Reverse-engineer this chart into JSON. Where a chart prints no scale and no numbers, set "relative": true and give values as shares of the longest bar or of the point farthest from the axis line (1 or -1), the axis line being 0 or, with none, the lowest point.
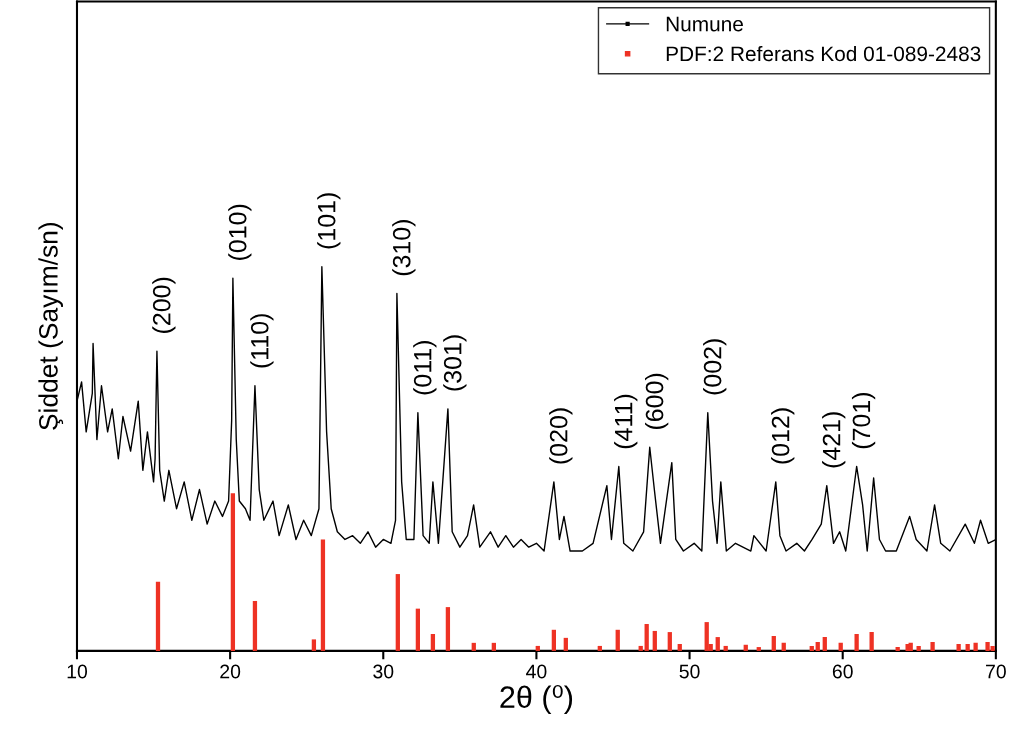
{
  "chart_data": {
    "type": "line",
    "relative": true,
    "xlabel": "2θ (⁰)",
    "ylabel": "Şiddet (Sayım/sn)",
    "xlim": [
      10,
      70
    ],
    "xticks": [
      10,
      20,
      30,
      40,
      50,
      60,
      70
    ],
    "legend": "top right",
    "grid": false,
    "series": [
      {
        "name": "Numune",
        "color": "#000000",
        "x": [
          10.0,
          10.3,
          10.6,
          11.0,
          11.05,
          11.3,
          11.6,
          12.0,
          12.3,
          12.7,
          13.0,
          13.5,
          14.0,
          14.3,
          14.6,
          15.0,
          15.1,
          15.22,
          15.4,
          15.7,
          16.0,
          16.5,
          17.0,
          17.5,
          18.0,
          18.5,
          19.0,
          19.5,
          19.9,
          20.1,
          20.18,
          20.4,
          20.6,
          21.0,
          21.3,
          21.62,
          21.9,
          22.2,
          22.8,
          23.2,
          23.8,
          24.3,
          24.8,
          25.3,
          25.8,
          25.99,
          26.3,
          26.6,
          27.0,
          27.5,
          28.0,
          28.5,
          29.0,
          29.5,
          30.0,
          30.5,
          30.8,
          30.89,
          31.2,
          31.5,
          32.0,
          32.26,
          32.6,
          33.0,
          33.24,
          33.6,
          34.22,
          34.5,
          35.0,
          35.5,
          35.9,
          36.3,
          37.0,
          37.5,
          38.0,
          38.5,
          39.0,
          39.5,
          40.0,
          40.5,
          41.14,
          41.5,
          41.8,
          42.2,
          43.0,
          43.7,
          44.6,
          44.9,
          45.38,
          45.7,
          46.3,
          47.0,
          47.4,
          47.7,
          48.1,
          48.84,
          49.1,
          49.6,
          50.3,
          50.8,
          51.19,
          51.5,
          51.8,
          52.04,
          52.4,
          53.0,
          54.0,
          54.2,
          55.0,
          55.63,
          55.9,
          56.3,
          57.0,
          57.5,
          58.0,
          58.6,
          58.96,
          59.4,
          59.8,
          60.2,
          60.91,
          61.3,
          61.6,
          62.02,
          62.4,
          62.8,
          63.5,
          64.37,
          64.8,
          65.5,
          66.0,
          66.4,
          67.0,
          68.0,
          68.6,
          69.0,
          69.5,
          70.0
        ],
        "values": [
          0.65,
          0.7,
          0.57,
          0.67,
          0.8,
          0.55,
          0.69,
          0.57,
          0.63,
          0.5,
          0.61,
          0.52,
          0.65,
          0.47,
          0.57,
          0.44,
          0.5,
          0.78,
          0.47,
          0.39,
          0.47,
          0.37,
          0.44,
          0.34,
          0.42,
          0.33,
          0.39,
          0.35,
          0.39,
          0.6,
          0.97,
          0.55,
          0.39,
          0.37,
          0.34,
          0.69,
          0.42,
          0.34,
          0.39,
          0.3,
          0.38,
          0.29,
          0.34,
          0.3,
          0.37,
          1.0,
          0.57,
          0.37,
          0.31,
          0.29,
          0.3,
          0.28,
          0.31,
          0.27,
          0.29,
          0.28,
          0.34,
          0.93,
          0.44,
          0.29,
          0.29,
          0.62,
          0.3,
          0.28,
          0.44,
          0.28,
          0.63,
          0.31,
          0.27,
          0.3,
          0.38,
          0.27,
          0.31,
          0.27,
          0.3,
          0.27,
          0.29,
          0.27,
          0.28,
          0.26,
          0.44,
          0.29,
          0.35,
          0.26,
          0.26,
          0.28,
          0.43,
          0.29,
          0.48,
          0.28,
          0.26,
          0.31,
          0.53,
          0.42,
          0.28,
          0.49,
          0.29,
          0.26,
          0.28,
          0.26,
          0.62,
          0.39,
          0.28,
          0.44,
          0.26,
          0.28,
          0.26,
          0.3,
          0.26,
          0.44,
          0.3,
          0.26,
          0.28,
          0.26,
          0.29,
          0.33,
          0.43,
          0.28,
          0.31,
          0.26,
          0.48,
          0.38,
          0.26,
          0.45,
          0.29,
          0.26,
          0.26,
          0.35,
          0.29,
          0.26,
          0.38,
          0.28,
          0.26,
          0.33,
          0.28,
          0.34,
          0.28,
          0.29
        ]
      },
      {
        "name": "PDF:2 Referans Kod 01-089-2483",
        "type": "bar",
        "color": "#ee3224",
        "x": [
          15.29,
          20.18,
          21.62,
          25.47,
          26.06,
          30.95,
          32.26,
          33.24,
          34.22,
          35.91,
          37.22,
          40.09,
          41.14,
          41.92,
          44.14,
          45.31,
          46.81,
          47.2,
          47.73,
          48.71,
          49.36,
          51.12,
          51.38,
          51.84,
          52.36,
          53.67,
          54.52,
          55.5,
          56.15,
          57.98,
          58.37,
          58.83,
          59.87,
          60.91,
          61.89,
          63.59,
          64.24,
          64.44,
          64.96,
          65.87,
          67.57,
          68.16,
          68.68,
          69.46,
          69.79
        ],
        "values": [
          0.18,
          0.41,
          0.13,
          0.03,
          0.29,
          0.2,
          0.11,
          0.044,
          0.114,
          0.021,
          0.021,
          0.013,
          0.055,
          0.034,
          0.013,
          0.055,
          0.013,
          0.07,
          0.052,
          0.049,
          0.018,
          0.075,
          0.018,
          0.036,
          0.013,
          0.016,
          0.01,
          0.039,
          0.021,
          0.013,
          0.023,
          0.036,
          0.021,
          0.044,
          0.049,
          0.01,
          0.018,
          0.021,
          0.013,
          0.023,
          0.018,
          0.018,
          0.021,
          0.023,
          0.013
        ]
      }
    ],
    "annotations": [
      {
        "text": "(200)",
        "x": 15.22,
        "y": 0.78
      },
      {
        "text": "(010)",
        "x": 20.18,
        "y": 0.97
      },
      {
        "text": "(110)",
        "x": 21.62,
        "y": 0.69
      },
      {
        "text": "(101)",
        "x": 25.99,
        "y": 1.0
      },
      {
        "text": "(310)",
        "x": 30.89,
        "y": 0.93
      },
      {
        "text": "(011)",
        "x": 32.26,
        "y": 0.62
      },
      {
        "text": "(301)",
        "x": 34.22,
        "y": 0.63
      },
      {
        "text": "(020)",
        "x": 41.14,
        "y": 0.44
      },
      {
        "text": "(411)",
        "x": 45.38,
        "y": 0.48
      },
      {
        "text": "(600)",
        "x": 47.4,
        "y": 0.53
      },
      {
        "text": "(002)",
        "x": 51.19,
        "y": 0.62
      },
      {
        "text": "(012)",
        "x": 55.63,
        "y": 0.44
      },
      {
        "text": "(421)",
        "x": 58.96,
        "y": 0.43
      },
      {
        "text": "(701)",
        "x": 60.91,
        "y": 0.48
      }
    ]
  }
}
